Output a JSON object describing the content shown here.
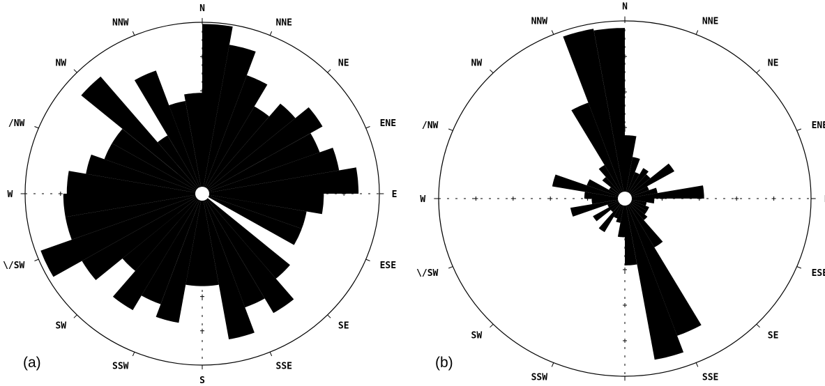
{
  "chart_data": [
    {
      "type": "rose",
      "panel_label": "(a)",
      "direction_labels": [
        "N",
        "NNE",
        "NE",
        "ENE",
        "E",
        "ESE",
        "SE",
        "SSE",
        "S",
        "SSW",
        "SW",
        "WSW",
        "W",
        "WNW",
        "NW",
        "NNW"
      ],
      "direction_labels_shown": [
        "N",
        "NNE",
        "NE",
        "ENE",
        "E",
        "ESE",
        "SE",
        "SSE",
        "S",
        "SSW",
        "SW",
        "\\/SW",
        "W",
        "/NW",
        "NW",
        "NNW"
      ],
      "bin_width_deg": 10,
      "values": [
        1.01,
        0.9,
        0.75,
        0.6,
        0.7,
        0.8,
        0.72,
        0.8,
        0.9,
        0.7,
        0.61,
        0.61,
        0.0,
        0.66,
        0.82,
        0.72,
        0.88,
        0.55,
        0.55,
        0.78,
        0.7,
        0.8,
        0.6,
        0.8,
        0.99,
        0.8,
        0.8,
        0.78,
        0.68,
        0.6,
        0.6,
        0.91,
        0.4,
        0.78,
        0.56,
        0.6
      ],
      "max_value": 1.02
    },
    {
      "type": "rose",
      "panel_label": "(b)",
      "direction_labels": [
        "N",
        "NNE",
        "NE",
        "ENE",
        "E",
        "ESE",
        "SE",
        "SSE",
        "S",
        "SSW",
        "SW",
        "WSW",
        "W",
        "WNW",
        "NW",
        "NNW"
      ],
      "direction_labels_shown": [
        "N",
        "NNE",
        "NE",
        "ENE",
        "E",
        "ESE",
        "SE",
        "SSE",
        "S",
        "SSW",
        "SW",
        "\\/SW",
        "W",
        "/NW",
        "NW",
        "NNW"
      ],
      "bin_width_deg": 10,
      "values": [
        0.36,
        0.24,
        0.16,
        0.2,
        0.18,
        0.31,
        0.14,
        0.18,
        0.43,
        0.16,
        0.12,
        0.14,
        0.14,
        0.16,
        0.32,
        0.83,
        0.93,
        0.38,
        0.22,
        0.14,
        0.12,
        0.22,
        0.1,
        0.2,
        0.1,
        0.3,
        0.18,
        0.22,
        0.4,
        0.22,
        0.1,
        0.16,
        0.22,
        0.58,
        0.98,
        0.97
      ],
      "max_value": 1.01
    }
  ]
}
